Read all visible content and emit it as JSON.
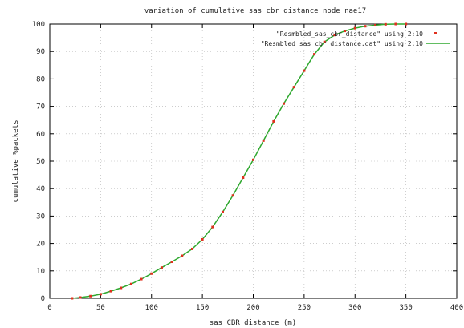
{
  "chart_data": {
    "type": "scatter",
    "title": "variation of cumulative sas_cbr_distance node_nae17",
    "xlabel": "sas CBR distance (m)",
    "ylabel": "cumulative %packets",
    "xlim": [
      0,
      400
    ],
    "ylim": [
      0,
      100
    ],
    "x_ticks": [
      "0",
      "50",
      "100",
      "150",
      "200",
      "250",
      "300",
      "350",
      "400"
    ],
    "y_ticks": [
      "0",
      "10",
      "20",
      "30",
      "40",
      "50",
      "60",
      "70",
      "80",
      "90",
      "100"
    ],
    "grid": true,
    "legend_position": "top-right",
    "series": [
      {
        "name": "\"Resmbled_sas_cbr_distance\" using 2:10",
        "style": "points",
        "color": "#e0301e",
        "x": [
          22,
          30,
          40,
          50,
          60,
          70,
          80,
          90,
          100,
          110,
          120,
          130,
          140,
          150,
          160,
          170,
          180,
          190,
          200,
          210,
          220,
          230,
          240,
          250,
          260,
          270,
          280,
          290,
          300,
          310,
          320,
          330,
          340,
          350
        ],
        "y": [
          0,
          0.3,
          0.8,
          1.5,
          2.6,
          3.8,
          5.2,
          7,
          9,
          11.2,
          13.3,
          15.5,
          18,
          21.5,
          26,
          31.5,
          37.5,
          44,
          50.5,
          57.5,
          64.5,
          71,
          77,
          83,
          89,
          93.5,
          96,
          97.5,
          98.5,
          99.2,
          99.6,
          99.9,
          100,
          100
        ]
      },
      {
        "name": "\"Resmbled_sas_cbr_distance.dat\" using 2:10",
        "style": "lines",
        "color": "#2fa82f",
        "x": [
          22,
          30,
          40,
          50,
          60,
          70,
          80,
          90,
          100,
          110,
          120,
          130,
          140,
          150,
          160,
          170,
          180,
          190,
          200,
          210,
          220,
          230,
          240,
          250,
          260,
          270,
          280,
          290,
          300,
          310,
          320,
          330,
          340,
          350
        ],
        "y": [
          0,
          0.3,
          0.8,
          1.5,
          2.6,
          3.8,
          5.2,
          7,
          9,
          11.2,
          13.3,
          15.5,
          18,
          21.5,
          26,
          31.5,
          37.5,
          44,
          50.5,
          57.5,
          64.5,
          71,
          77,
          83,
          89,
          93.5,
          96,
          97.5,
          98.5,
          99.2,
          99.6,
          99.9,
          100,
          100
        ]
      }
    ]
  }
}
